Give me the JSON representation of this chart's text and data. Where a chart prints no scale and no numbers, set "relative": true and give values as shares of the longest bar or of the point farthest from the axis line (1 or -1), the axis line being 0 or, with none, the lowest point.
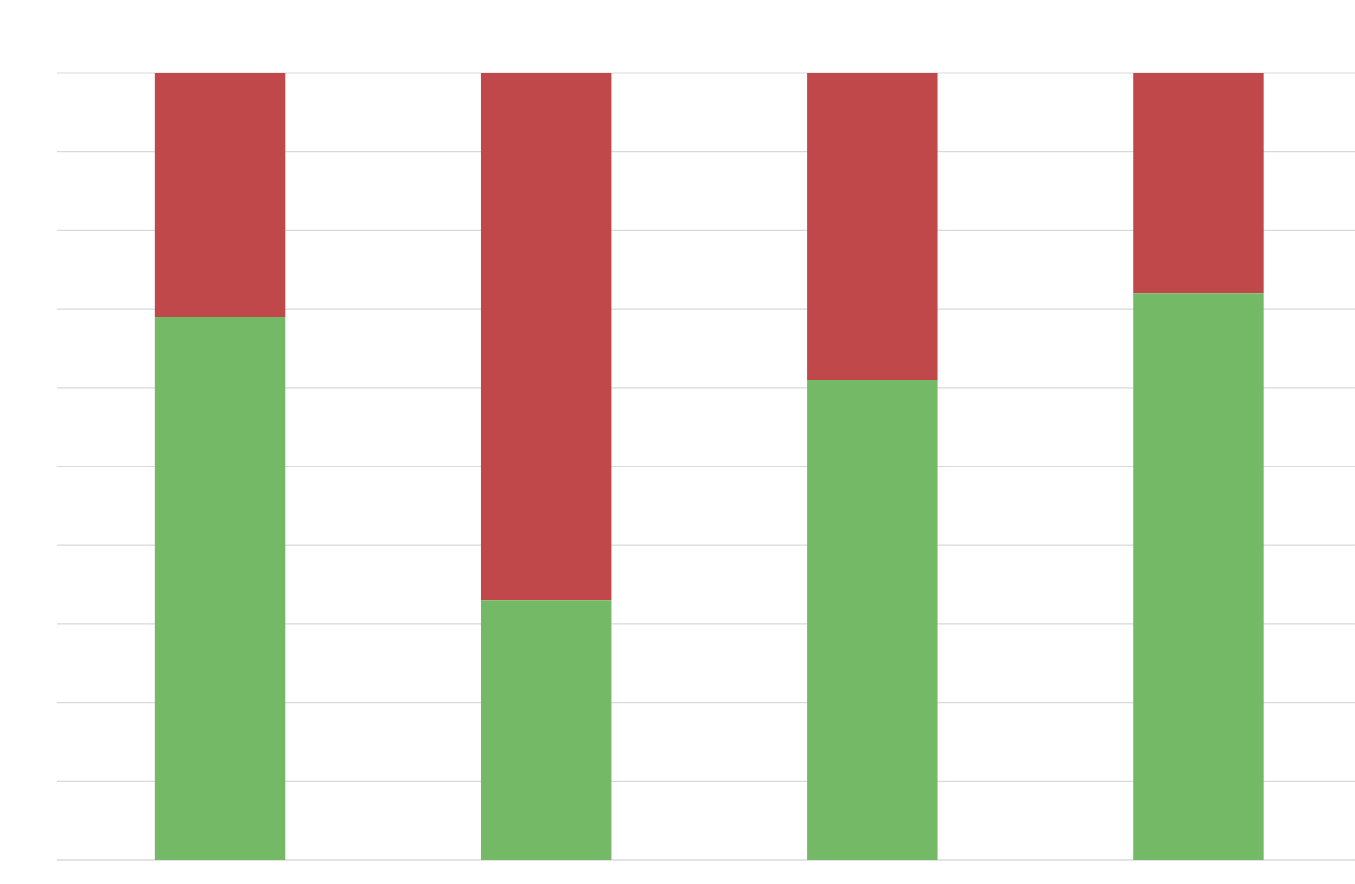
{
  "chart_data": {
    "type": "bar",
    "relative": true,
    "stacked": true,
    "grid": "y",
    "categories": [
      null,
      null,
      null,
      null
    ],
    "series": [
      {
        "color": "#74b966",
        "values": [
          0.69,
          0.33,
          0.61,
          0.72
        ]
      },
      {
        "color": "#c0484a",
        "values": [
          0.31,
          0.67,
          0.39,
          0.28
        ]
      }
    ]
  }
}
